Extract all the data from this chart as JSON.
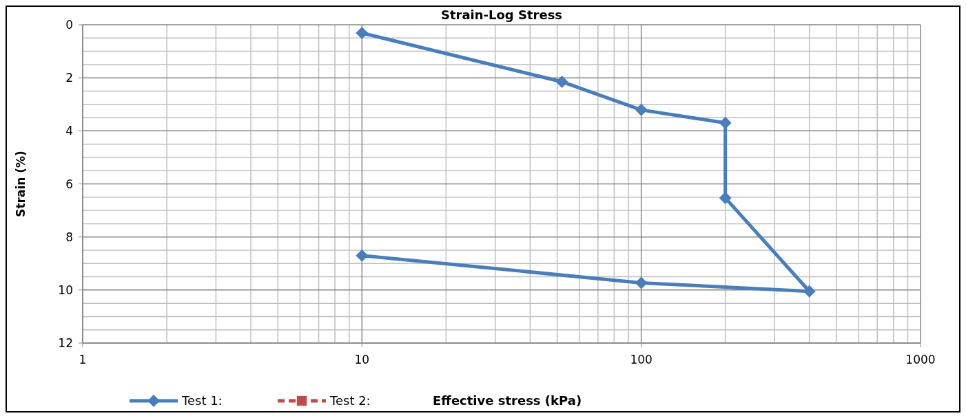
{
  "chart_data": {
    "type": "line",
    "title": "Strain-Log Stress",
    "xlabel": "Effective stress (kPa)",
    "ylabel": "Strain (%)",
    "log": "x",
    "xlim": [
      1,
      1000
    ],
    "xticks": [
      1,
      10,
      100,
      1000
    ],
    "ylim": [
      12,
      0
    ],
    "yticks": [
      0,
      2,
      4,
      6,
      8,
      10,
      12
    ],
    "grid": true,
    "legend": "bottom",
    "series": [
      {
        "name": "Test 1:",
        "color": "#4a7ebb",
        "marker": "diamond",
        "line_style": "solid",
        "x": [
          10,
          52,
          100,
          200,
          200,
          400,
          100,
          10
        ],
        "values": [
          0.31,
          2.15,
          3.21,
          3.7,
          6.53,
          10.05,
          9.73,
          8.7
        ]
      },
      {
        "name": "Test 2:",
        "color": "#be4b48",
        "marker": "square",
        "line_style": "dashed"
      }
    ]
  }
}
